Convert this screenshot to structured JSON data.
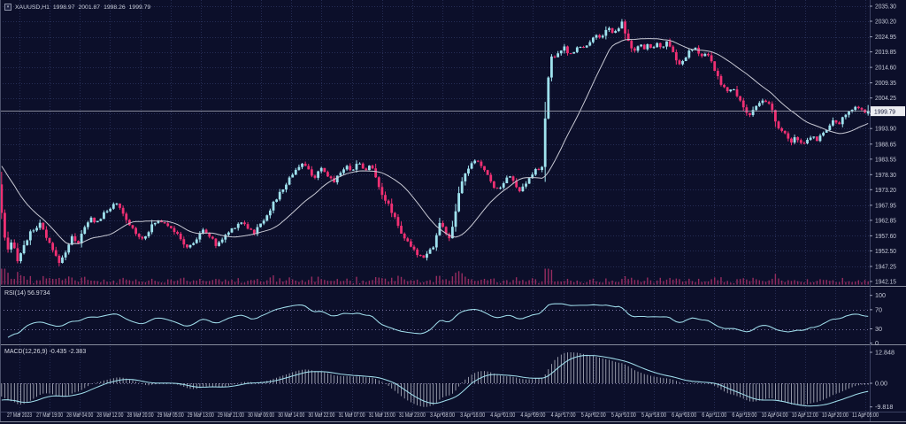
{
  "header": {
    "symbol": "XAUUSD,H1",
    "open": "1998.97",
    "high": "2001.87",
    "low": "1998.26",
    "close": "1999.79"
  },
  "panels": {
    "rsi": {
      "label": "RSI(14) 56.9734",
      "levels": [
        70,
        30
      ],
      "axis_labels": [
        "100",
        "70",
        "30",
        "0"
      ]
    },
    "macd": {
      "label": "MACD(12,26,9) -0.435 -2.383",
      "axis_labels": [
        "12.848",
        "0.00",
        "-9.818"
      ],
      "max": 12.848,
      "min": -9.818
    }
  },
  "colors": {
    "background": "#0c0f2a",
    "grid": "#262d55",
    "bull": "#9fe2ee",
    "bear": "#f03073",
    "ma": "#c8c9d4",
    "volume": "#962c60",
    "indicator_line": "#9fdcea",
    "histogram": "#b6b9c6",
    "axis_text": "#c6cad8",
    "separator": "#858a9c",
    "price_line": "#b0b3c0",
    "tag_bg": "#ecedf2",
    "tag_text": "#141838",
    "level_dotted": "#7b74a4",
    "border": "#3c4263"
  },
  "chart_data": {
    "type": "candlestick",
    "symbol": "XAUUSD",
    "timeframe": "H1",
    "bars": 272,
    "current_price": 1999.79,
    "last_bar": {
      "open": 1998.97,
      "high": 2001.87,
      "low": 1998.26,
      "close": 1999.79
    },
    "ma_period": 21,
    "pre_chart_trend": [
      1992,
      1972
    ],
    "indicators": {
      "rsi": {
        "period": 14,
        "value": 56.9734
      },
      "macd": {
        "fast": 12,
        "slow": 26,
        "signal": 9,
        "main": -0.435,
        "signal_value": -2.383
      }
    },
    "price_axis_labels": [
      "2035.30",
      "2030.20",
      "2024.95",
      "2019.85",
      "2014.60",
      "2009.35",
      "2004.25",
      "1999.00",
      "1993.90",
      "1988.65",
      "1983.55",
      "1978.30",
      "1973.20",
      "1967.95",
      "1962.85",
      "1957.60",
      "1952.50",
      "1947.25",
      "1942.15"
    ],
    "time_axis_labels": [
      "27 Mar 2023",
      "27 Mar 19:00",
      "28 Mar 04:00",
      "28 Mar 12:00",
      "28 Mar 20:00",
      "29 Mar 05:00",
      "29 Mar 13:00",
      "29 Mar 21:00",
      "30 Mar 06:00",
      "30 Mar 14:00",
      "30 Mar 22:00",
      "31 Mar 07:00",
      "31 Mar 15:00",
      "31 Mar 23:00",
      "3 Apr 08:00",
      "3 Apr 16:00",
      "4 Apr 01:00",
      "4 Apr 09:00",
      "4 Apr 17:00",
      "5 Apr 02:00",
      "5 Apr 10:00",
      "5 Apr 18:00",
      "6 Apr 03:00",
      "6 Apr 11:00",
      "6 Apr 19:00",
      "10 Apr 04:00",
      "10 Apr 12:00",
      "10 Apr 20:00",
      "11 Apr 05:00"
    ],
    "price_path": [
      [
        0,
        1972
      ],
      [
        3,
        1961
      ],
      [
        8,
        1952
      ],
      [
        14,
        1955.5
      ],
      [
        20,
        1949.5
      ],
      [
        26,
        1953.5
      ],
      [
        33,
        1958
      ],
      [
        40,
        1960.5
      ],
      [
        46,
        1961.5
      ],
      [
        52,
        1957
      ],
      [
        58,
        1953.5
      ],
      [
        64,
        1950
      ],
      [
        68,
        1948.5
      ],
      [
        75,
        1953
      ],
      [
        82,
        1957.5
      ],
      [
        88,
        1955
      ],
      [
        95,
        1960
      ],
      [
        103,
        1963.5
      ],
      [
        109,
        1962
      ],
      [
        116,
        1964.5
      ],
      [
        123,
        1966.5
      ],
      [
        129,
        1969
      ],
      [
        135,
        1967
      ],
      [
        141,
        1963.5
      ],
      [
        147,
        1961
      ],
      [
        153,
        1959
      ],
      [
        160,
        1956.5
      ],
      [
        166,
        1958.5
      ],
      [
        173,
        1961.5
      ],
      [
        180,
        1963
      ],
      [
        187,
        1962
      ],
      [
        194,
        1960.5
      ],
      [
        200,
        1958
      ],
      [
        207,
        1955
      ],
      [
        213,
        1953.5
      ],
      [
        220,
        1955.5
      ],
      [
        226,
        1958.5
      ],
      [
        232,
        1959.5
      ],
      [
        238,
        1957
      ],
      [
        244,
        1954.5
      ],
      [
        250,
        1956
      ],
      [
        256,
        1958
      ],
      [
        262,
        1960
      ],
      [
        268,
        1961.5
      ],
      [
        274,
        1962.5
      ],
      [
        280,
        1960.5
      ],
      [
        287,
        1958.5
      ],
      [
        293,
        1961
      ],
      [
        300,
        1964
      ],
      [
        307,
        1967.5
      ],
      [
        314,
        1971
      ],
      [
        321,
        1974
      ],
      [
        328,
        1977.5
      ],
      [
        335,
        1980.5
      ],
      [
        342,
        1982
      ],
      [
        349,
        1979.5
      ],
      [
        356,
        1977.5
      ],
      [
        363,
        1980
      ],
      [
        370,
        1978
      ],
      [
        377,
        1976
      ],
      [
        384,
        1979
      ],
      [
        391,
        1981
      ],
      [
        398,
        1980
      ],
      [
        405,
        1982.5
      ],
      [
        412,
        1980
      ],
      [
        419,
        1981.5
      ],
      [
        426,
        1976.5
      ],
      [
        433,
        1971
      ],
      [
        440,
        1967.5
      ],
      [
        447,
        1963.5
      ],
      [
        453,
        1959
      ],
      [
        460,
        1955.5
      ],
      [
        466,
        1953
      ],
      [
        472,
        1951.5
      ],
      [
        478,
        1950.5
      ],
      [
        484,
        1952.5
      ],
      [
        490,
        1954
      ],
      [
        497,
        1962
      ],
      [
        503,
        1959
      ],
      [
        509,
        1956.5
      ],
      [
        515,
        1966
      ],
      [
        521,
        1975
      ],
      [
        527,
        1979.5
      ],
      [
        533,
        1982
      ],
      [
        540,
        1983
      ],
      [
        546,
        1980.5
      ],
      [
        552,
        1977.5
      ],
      [
        558,
        1974.5
      ],
      [
        564,
        1973
      ],
      [
        570,
        1976.5
      ],
      [
        576,
        1978.5
      ],
      [
        582,
        1974.5
      ],
      [
        588,
        1972.5
      ],
      [
        594,
        1975
      ],
      [
        600,
        1977.5
      ],
      [
        606,
        1980.5
      ],
      [
        612,
        1979
      ],
      [
        616,
        1996
      ],
      [
        620,
        2012
      ],
      [
        624,
        2020
      ],
      [
        628,
        2018
      ],
      [
        633,
        2019.5
      ],
      [
        638,
        2021.5
      ],
      [
        643,
        2018.5
      ],
      [
        648,
        2020
      ],
      [
        653,
        2022
      ],
      [
        658,
        2021
      ],
      [
        663,
        2022.5
      ],
      [
        668,
        2024
      ],
      [
        673,
        2025.5
      ],
      [
        678,
        2024.5
      ],
      [
        683,
        2026.5
      ],
      [
        688,
        2028
      ],
      [
        693,
        2026
      ],
      [
        698,
        2027.5
      ],
      [
        703,
        2030.5
      ],
      [
        708,
        2025
      ],
      [
        713,
        2021.5
      ],
      [
        718,
        2020
      ],
      [
        723,
        2022
      ],
      [
        728,
        2021
      ],
      [
        733,
        2022.5
      ],
      [
        738,
        2021
      ],
      [
        743,
        2022.5
      ],
      [
        748,
        2021.5
      ],
      [
        753,
        2023
      ],
      [
        758,
        2021
      ],
      [
        763,
        2018
      ],
      [
        768,
        2015.5
      ],
      [
        773,
        2017
      ],
      [
        778,
        2019.5
      ],
      [
        783,
        2021
      ],
      [
        788,
        2020.5
      ],
      [
        793,
        2018
      ],
      [
        798,
        2019.5
      ],
      [
        803,
        2017
      ],
      [
        808,
        2013.5
      ],
      [
        813,
        2010
      ],
      [
        818,
        2008
      ],
      [
        823,
        2006
      ],
      [
        828,
        2007.5
      ],
      [
        833,
        2005
      ],
      [
        838,
        2003
      ],
      [
        843,
        1999.5
      ],
      [
        848,
        1998.5
      ],
      [
        853,
        2000.5
      ],
      [
        858,
        2002
      ],
      [
        863,
        2003.5
      ],
      [
        868,
        2002.5
      ],
      [
        873,
        2000
      ],
      [
        878,
        1994.5
      ],
      [
        883,
        1993
      ],
      [
        888,
        1991.5
      ],
      [
        893,
        1989.5
      ],
      [
        898,
        1990.5
      ],
      [
        903,
        1989
      ],
      [
        908,
        1988.5
      ],
      [
        913,
        1990
      ],
      [
        918,
        1991.5
      ],
      [
        923,
        1990
      ],
      [
        928,
        1992
      ],
      [
        933,
        1993.5
      ],
      [
        938,
        1995
      ],
      [
        943,
        1996.5
      ],
      [
        948,
        1995.5
      ],
      [
        953,
        1997.5
      ],
      [
        958,
        1999
      ],
      [
        963,
        2000.5
      ],
      [
        968,
        2002
      ],
      [
        973,
        2000.5
      ],
      [
        978,
        1999
      ],
      [
        983,
        1999.8
      ]
    ]
  }
}
